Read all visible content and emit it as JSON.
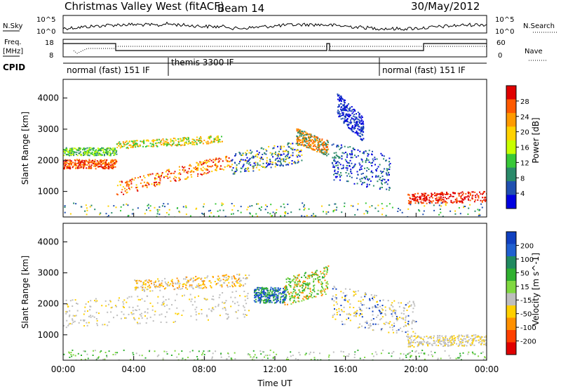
{
  "header": {
    "title": "Christmas Valley West (fitACF)",
    "beam": "Beam 14",
    "date": "30/May/2012"
  },
  "panels": {
    "noise": {
      "left_label": "N.Sky",
      "right_label": "N.Search",
      "y_ticks": [
        "10^5",
        "10^0"
      ],
      "right_ticks": [
        "10^5",
        "10^0"
      ]
    },
    "freq": {
      "left_label_1": "Freq.",
      "left_label_2": "[MHz]",
      "y_ticks": [
        "18",
        "8"
      ],
      "right_label": "Nave",
      "right_ticks": [
        "60",
        "0"
      ]
    },
    "cpid": {
      "label": "CPID",
      "segments": [
        {
          "label": "normal (fast) 151 IF",
          "start_hour": 0
        },
        {
          "label": "themis 3300 IF",
          "start_hour": 6
        },
        {
          "label": "normal (fast) 151 IF",
          "start_hour": 18
        }
      ]
    }
  },
  "chart_data": [
    {
      "type": "heatmap",
      "quantity": "Power",
      "ylabel": "Slant Range [km]",
      "yticks": [
        1000,
        2000,
        3000,
        4000
      ],
      "ylim": [
        180,
        4600
      ],
      "colorbar": {
        "label": "Power [dB]",
        "ticks": [
          "28",
          "24",
          "20",
          "16",
          "12",
          "8",
          "4"
        ],
        "colors": [
          "#e00000",
          "#ff5a00",
          "#ff9a00",
          "#ffd200",
          "#c8ff00",
          "#38c838",
          "#2a8a6a",
          "#2050b0",
          "#0000e0"
        ]
      }
    },
    {
      "type": "heatmap",
      "quantity": "Velocity",
      "ylabel": "Slant Range [km]",
      "yticks": [
        1000,
        2000,
        3000,
        4000
      ],
      "ylim": [
        180,
        4600
      ],
      "colorbar": {
        "label": "Velocity [m s^-1]",
        "ticks": [
          "200",
          "100",
          "50",
          "15",
          "-15",
          "-50",
          "-100",
          "-200"
        ],
        "colors": [
          "#1040c0",
          "#2060d0",
          "#208a60",
          "#30b030",
          "#80d840",
          "#bebebe",
          "#ffd000",
          "#ff9000",
          "#ff4000",
          "#e00000"
        ]
      }
    }
  ],
  "time_axis": {
    "label": "Time UT",
    "ticks": [
      "00:00",
      "04:00",
      "08:00",
      "12:00",
      "16:00",
      "20:00",
      "00:00"
    ],
    "range_hours": [
      0,
      24
    ]
  }
}
